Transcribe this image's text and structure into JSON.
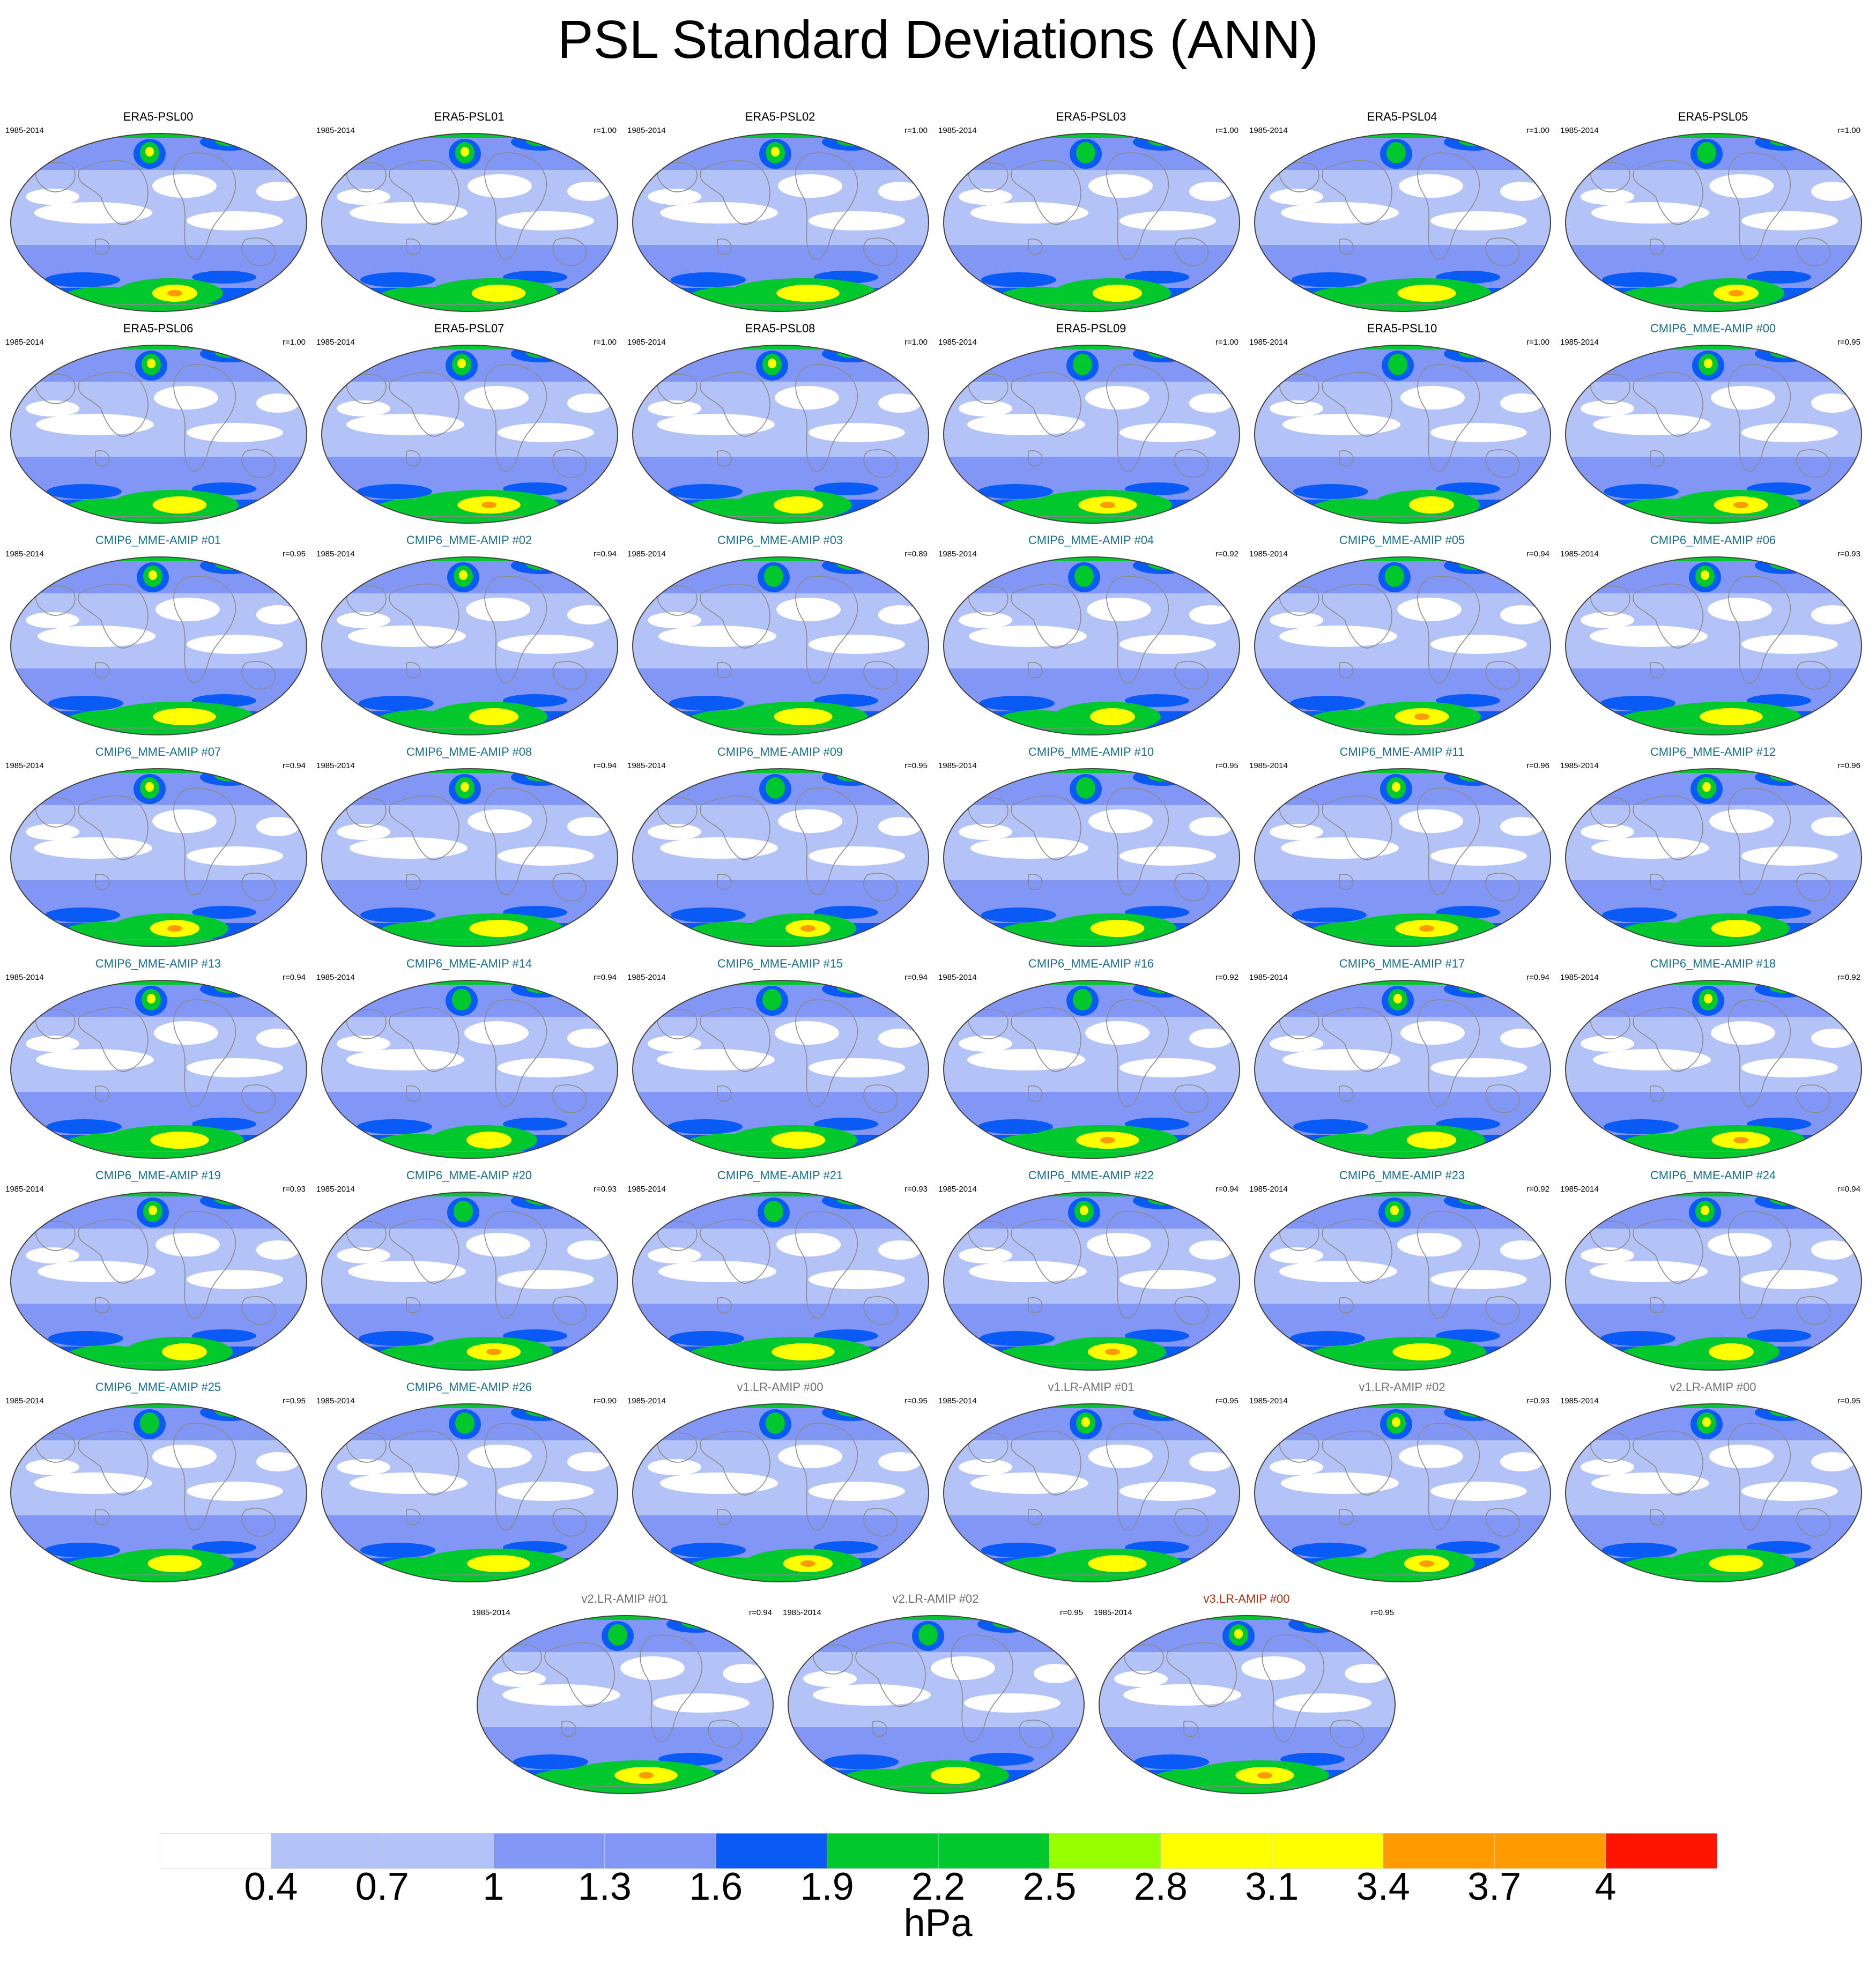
{
  "title": "PSL Standard Deviations (ANN)",
  "period": "1985-2014",
  "colors": {
    "era5_title": "#000000",
    "cmip6_title": "#1a6f8a",
    "e3sm_title": "#707070",
    "v3_title": "#b03010",
    "coast": "#8a8a8a",
    "outline": "#444444"
  },
  "colorbar": {
    "units": "hPa",
    "labels": [
      "0.4",
      "0.7",
      "1",
      "1.3",
      "1.6",
      "1.9",
      "2.2",
      "2.5",
      "2.8",
      "3.1",
      "3.4",
      "3.7",
      "4"
    ],
    "fills": [
      "#ffffff",
      "#b4c3f7",
      "#b4c3f7",
      "#8296f5",
      "#8296f5",
      "#0a5af5",
      "#00c82d",
      "#00c82d",
      "#96ff00",
      "#ffff00",
      "#ffff00",
      "#ff9b00",
      "#ff9b00",
      "#ff1400"
    ]
  },
  "panels": [
    {
      "name": "ERA5-PSL00",
      "r": "",
      "group": "era5"
    },
    {
      "name": "ERA5-PSL01",
      "r": "r=1.00",
      "group": "era5"
    },
    {
      "name": "ERA5-PSL02",
      "r": "r=1.00",
      "group": "era5"
    },
    {
      "name": "ERA5-PSL03",
      "r": "r=1.00",
      "group": "era5"
    },
    {
      "name": "ERA5-PSL04",
      "r": "r=1.00",
      "group": "era5"
    },
    {
      "name": "ERA5-PSL05",
      "r": "r=1.00",
      "group": "era5"
    },
    {
      "name": "ERA5-PSL06",
      "r": "r=1.00",
      "group": "era5"
    },
    {
      "name": "ERA5-PSL07",
      "r": "r=1.00",
      "group": "era5"
    },
    {
      "name": "ERA5-PSL08",
      "r": "r=1.00",
      "group": "era5"
    },
    {
      "name": "ERA5-PSL09",
      "r": "r=1.00",
      "group": "era5"
    },
    {
      "name": "ERA5-PSL10",
      "r": "r=1.00",
      "group": "era5"
    },
    {
      "name": "CMIP6_MME-AMIP  #00",
      "r": "r=0.95",
      "group": "cmip6"
    },
    {
      "name": "CMIP6_MME-AMIP  #01",
      "r": "r=0.95",
      "group": "cmip6"
    },
    {
      "name": "CMIP6_MME-AMIP  #02",
      "r": "r=0.94",
      "group": "cmip6"
    },
    {
      "name": "CMIP6_MME-AMIP  #03",
      "r": "r=0.89",
      "group": "cmip6"
    },
    {
      "name": "CMIP6_MME-AMIP  #04",
      "r": "r=0.92",
      "group": "cmip6"
    },
    {
      "name": "CMIP6_MME-AMIP  #05",
      "r": "r=0.94",
      "group": "cmip6"
    },
    {
      "name": "CMIP6_MME-AMIP  #06",
      "r": "r=0.93",
      "group": "cmip6"
    },
    {
      "name": "CMIP6_MME-AMIP  #07",
      "r": "r=0.94",
      "group": "cmip6"
    },
    {
      "name": "CMIP6_MME-AMIP  #08",
      "r": "r=0.94",
      "group": "cmip6"
    },
    {
      "name": "CMIP6_MME-AMIP  #09",
      "r": "r=0.95",
      "group": "cmip6"
    },
    {
      "name": "CMIP6_MME-AMIP  #10",
      "r": "r=0.95",
      "group": "cmip6"
    },
    {
      "name": "CMIP6_MME-AMIP  #11",
      "r": "r=0.96",
      "group": "cmip6"
    },
    {
      "name": "CMIP6_MME-AMIP  #12",
      "r": "r=0.96",
      "group": "cmip6"
    },
    {
      "name": "CMIP6_MME-AMIP  #13",
      "r": "r=0.94",
      "group": "cmip6"
    },
    {
      "name": "CMIP6_MME-AMIP  #14",
      "r": "r=0.94",
      "group": "cmip6"
    },
    {
      "name": "CMIP6_MME-AMIP  #15",
      "r": "r=0.94",
      "group": "cmip6"
    },
    {
      "name": "CMIP6_MME-AMIP  #16",
      "r": "r=0.92",
      "group": "cmip6"
    },
    {
      "name": "CMIP6_MME-AMIP  #17",
      "r": "r=0.94",
      "group": "cmip6"
    },
    {
      "name": "CMIP6_MME-AMIP  #18",
      "r": "r=0.92",
      "group": "cmip6"
    },
    {
      "name": "CMIP6_MME-AMIP  #19",
      "r": "r=0.93",
      "group": "cmip6"
    },
    {
      "name": "CMIP6_MME-AMIP  #20",
      "r": "r=0.93",
      "group": "cmip6"
    },
    {
      "name": "CMIP6_MME-AMIP  #21",
      "r": "r=0.93",
      "group": "cmip6"
    },
    {
      "name": "CMIP6_MME-AMIP  #22",
      "r": "r=0.94",
      "group": "cmip6"
    },
    {
      "name": "CMIP6_MME-AMIP  #23",
      "r": "r=0.92",
      "group": "cmip6"
    },
    {
      "name": "CMIP6_MME-AMIP  #24",
      "r": "r=0.94",
      "group": "cmip6"
    },
    {
      "name": "CMIP6_MME-AMIP  #25",
      "r": "r=0.95",
      "group": "cmip6"
    },
    {
      "name": "CMIP6_MME-AMIP  #26",
      "r": "r=0.90",
      "group": "cmip6"
    },
    {
      "name": "v1.LR-AMIP  #00",
      "r": "r=0.95",
      "group": "e3sm"
    },
    {
      "name": "v1.LR-AMIP  #01",
      "r": "r=0.95",
      "group": "e3sm"
    },
    {
      "name": "v1.LR-AMIP  #02",
      "r": "r=0.93",
      "group": "e3sm"
    },
    {
      "name": "v2.LR-AMIP  #00",
      "r": "r=0.95",
      "group": "e3sm"
    },
    {
      "name": "v2.LR-AMIP  #01",
      "r": "r=0.94",
      "group": "e3sm"
    },
    {
      "name": "v2.LR-AMIP  #02",
      "r": "r=0.95",
      "group": "e3sm"
    },
    {
      "name": "v3.LR-AMIP  #00",
      "r": "r=0.95",
      "group": "v3"
    }
  ]
}
